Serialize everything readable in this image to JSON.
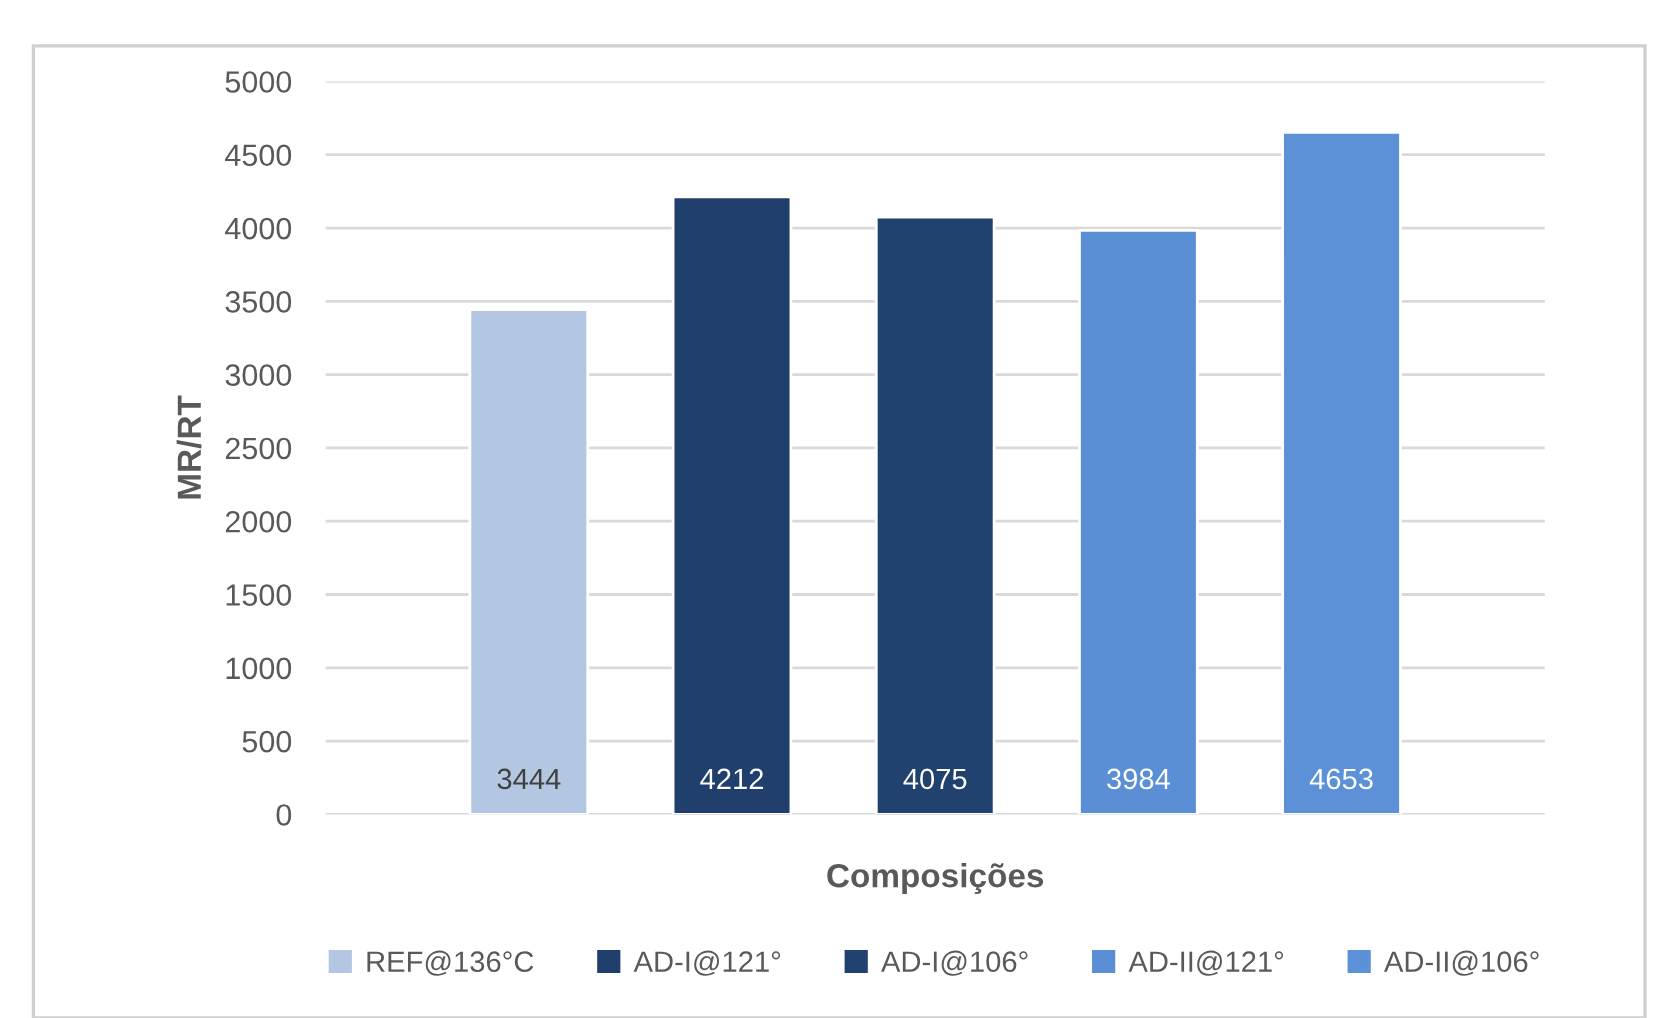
{
  "chart_data": {
    "type": "bar",
    "xlabel": "Composições",
    "ylabel": "MR/RT",
    "categories": [
      null,
      null,
      null,
      null,
      null
    ],
    "series": [
      {
        "name": "REF@136°C",
        "color": "#b4c7e2",
        "values": [
          3444,
          null,
          null,
          null,
          null
        ]
      },
      {
        "name": "AD-I@121°",
        "color": "#203f6c",
        "values": [
          null,
          4212,
          null,
          null,
          null
        ]
      },
      {
        "name": "AD-I@106°",
        "color": "#21416f",
        "values": [
          null,
          null,
          4075,
          null,
          null
        ]
      },
      {
        "name": "AD-II@121°",
        "color": "#5a8fd6",
        "values": [
          null,
          null,
          null,
          3984,
          null
        ]
      },
      {
        "name": "AD-II@106°",
        "color": "#5c91d8",
        "values": [
          null,
          null,
          null,
          null,
          4653
        ]
      }
    ],
    "ylim": [
      0,
      5000
    ],
    "yticks": [
      0,
      500,
      1000,
      1500,
      2000,
      2500,
      3000,
      3500,
      4000,
      4500,
      5000
    ],
    "grid": "y",
    "legend": "bottom",
    "data_labels": true
  }
}
